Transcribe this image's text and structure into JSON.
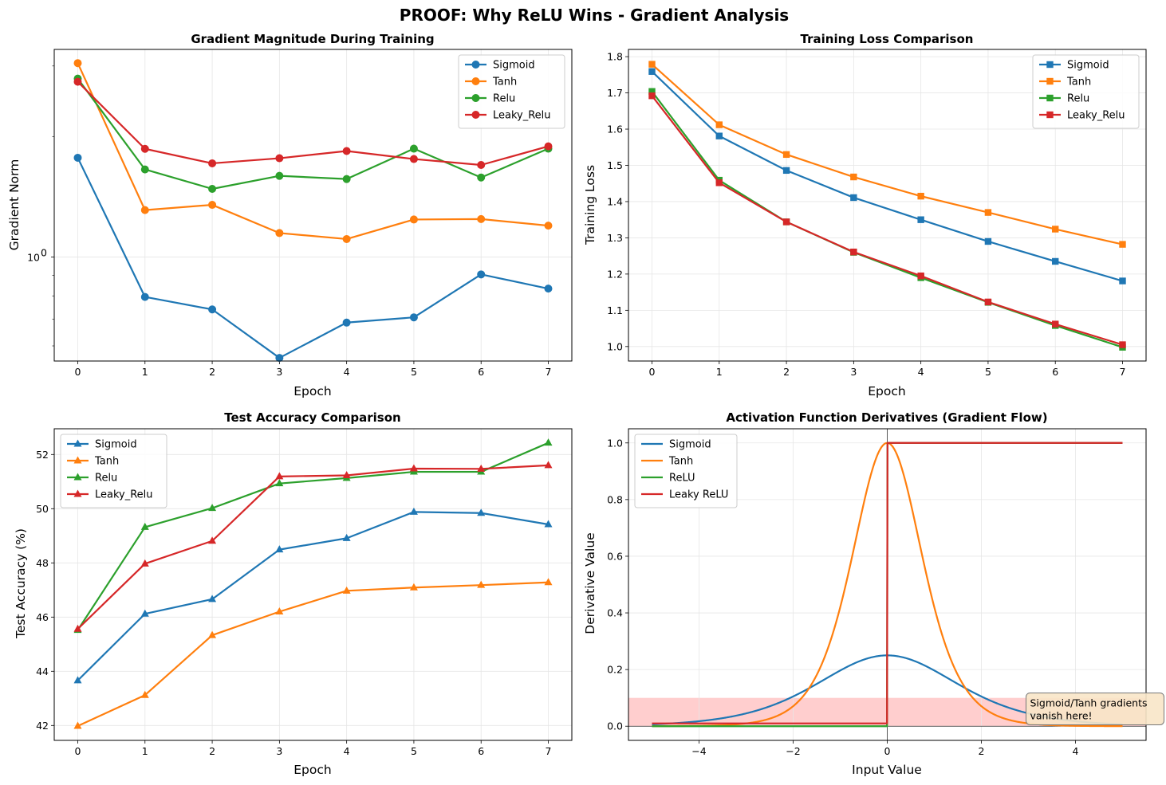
{
  "figure": {
    "title": "PROOF: Why ReLU Wins - Gradient Analysis"
  },
  "colors": {
    "Sigmoid": "#1f77b4",
    "Tanh": "#ff7f0e",
    "ReLU": "#2ca02c",
    "Leaky ReLU": "#d62728",
    "grid": "#e6e6e6",
    "vanish_band": "#ffc9c9",
    "annotation_bg": "#f8e6c8"
  },
  "chart_data": [
    {
      "type": "line",
      "title": "Gradient Magnitude During Training",
      "xlabel": "Epoch",
      "ylabel": "Gradient Norm",
      "yscale": "log",
      "ylim": [
        0.55,
        3.3
      ],
      "xlim": [
        -0.35,
        7.35
      ],
      "yticks": [
        {
          "value": 1,
          "label": "10",
          "sup": "0"
        }
      ],
      "xticks": [
        0,
        1,
        2,
        3,
        4,
        5,
        6,
        7
      ],
      "marker": "circle",
      "legend_loc": "upper right",
      "x": [
        0,
        1,
        2,
        3,
        4,
        5,
        6,
        7
      ],
      "series": [
        {
          "name": "Sigmoid",
          "values": [
            1.77,
            0.795,
            0.74,
            0.56,
            0.686,
            0.707,
            0.905,
            0.834
          ]
        },
        {
          "name": "Tanh",
          "values": [
            3.05,
            1.31,
            1.35,
            1.148,
            1.109,
            1.241,
            1.244,
            1.198
          ]
        },
        {
          "name": "Relu",
          "values": [
            2.79,
            1.655,
            1.48,
            1.595,
            1.566,
            1.865,
            1.58,
            1.865
          ]
        },
        {
          "name": "Leaky_Relu",
          "values": [
            2.74,
            1.863,
            1.714,
            1.765,
            1.84,
            1.757,
            1.698,
            1.89
          ]
        }
      ]
    },
    {
      "type": "line",
      "title": "Training Loss Comparison",
      "xlabel": "Epoch",
      "ylabel": "Training Loss",
      "ylim": [
        0.96,
        1.82
      ],
      "xlim": [
        -0.35,
        7.35
      ],
      "yticks": [
        1.0,
        1.1,
        1.2,
        1.3,
        1.4,
        1.5,
        1.6,
        1.7,
        1.8
      ],
      "ytick_labels": [
        "1.0",
        "1.1",
        "1.2",
        "1.3",
        "1.4",
        "1.5",
        "1.6",
        "1.7",
        "1.8"
      ],
      "xticks": [
        0,
        1,
        2,
        3,
        4,
        5,
        6,
        7
      ],
      "marker": "square",
      "legend_loc": "upper right",
      "x": [
        0,
        1,
        2,
        3,
        4,
        5,
        6,
        7
      ],
      "series": [
        {
          "name": "Sigmoid",
          "values": [
            1.759,
            1.581,
            1.486,
            1.411,
            1.35,
            1.29,
            1.235,
            1.181
          ]
        },
        {
          "name": "Tanh",
          "values": [
            1.779,
            1.612,
            1.53,
            1.468,
            1.415,
            1.37,
            1.324,
            1.282
          ]
        },
        {
          "name": "Relu",
          "values": [
            1.704,
            1.459,
            1.344,
            1.26,
            1.19,
            1.122,
            1.058,
            0.998
          ]
        },
        {
          "name": "Leaky_Relu",
          "values": [
            1.692,
            1.452,
            1.344,
            1.261,
            1.195,
            1.123,
            1.062,
            1.005
          ]
        }
      ]
    },
    {
      "type": "line",
      "title": "Test Accuracy Comparison",
      "xlabel": "Epoch",
      "ylabel": "Test Accuracy (%)",
      "ylim": [
        41.45,
        52.95
      ],
      "xlim": [
        -0.35,
        7.35
      ],
      "yticks": [
        42,
        44,
        46,
        48,
        50,
        52
      ],
      "ytick_labels": [
        "42",
        "44",
        "46",
        "48",
        "50",
        "52"
      ],
      "xticks": [
        0,
        1,
        2,
        3,
        4,
        5,
        6,
        7
      ],
      "marker": "triangle",
      "legend_loc": "upper left",
      "x": [
        0,
        1,
        2,
        3,
        4,
        5,
        6,
        7
      ],
      "series": [
        {
          "name": "Sigmoid",
          "values": [
            43.66,
            46.12,
            46.66,
            48.49,
            48.91,
            49.88,
            49.84,
            49.42
          ]
        },
        {
          "name": "Tanh",
          "values": [
            41.98,
            43.12,
            45.33,
            46.2,
            46.97,
            47.09,
            47.18,
            47.28
          ]
        },
        {
          "name": "Relu",
          "values": [
            45.52,
            49.32,
            50.02,
            50.93,
            51.13,
            51.36,
            51.36,
            52.43
          ]
        },
        {
          "name": "Leaky_Relu",
          "values": [
            45.56,
            47.97,
            48.81,
            51.19,
            51.23,
            51.48,
            51.47,
            51.6
          ]
        }
      ]
    },
    {
      "type": "line",
      "title": "Activation Function Derivatives (Gradient Flow)",
      "xlabel": "Input Value",
      "ylabel": "Derivative Value",
      "ylim": [
        -0.05,
        1.05
      ],
      "xlim": [
        -5.5,
        5.5
      ],
      "yticks": [
        0.0,
        0.2,
        0.4,
        0.6,
        0.8,
        1.0
      ],
      "ytick_labels": [
        "0.0",
        "0.2",
        "0.4",
        "0.6",
        "0.8",
        "1.0"
      ],
      "xticks": [
        -4,
        -2,
        0,
        2,
        4
      ],
      "xtick_labels": [
        "−4",
        "−2",
        "0",
        "2",
        "4"
      ],
      "legend_loc": "upper left",
      "domain": [
        -5,
        5
      ],
      "functions": [
        {
          "name": "Sigmoid",
          "formula": "sigmoid(x)*(1-sigmoid(x))"
        },
        {
          "name": "Tanh",
          "formula": "1-tanh(x)^2"
        },
        {
          "name": "ReLU",
          "formula": "1 if x>0 else 0"
        },
        {
          "name": "Leaky ReLU",
          "formula": "1 if x>0 else 0.01"
        }
      ],
      "vanish_band": {
        "y0": 0,
        "y1": 0.1
      },
      "annotation": {
        "lines": [
          "Sigmoid/Tanh gradients",
          "vanish here!"
        ],
        "x": 3,
        "y": 0.05
      }
    }
  ]
}
